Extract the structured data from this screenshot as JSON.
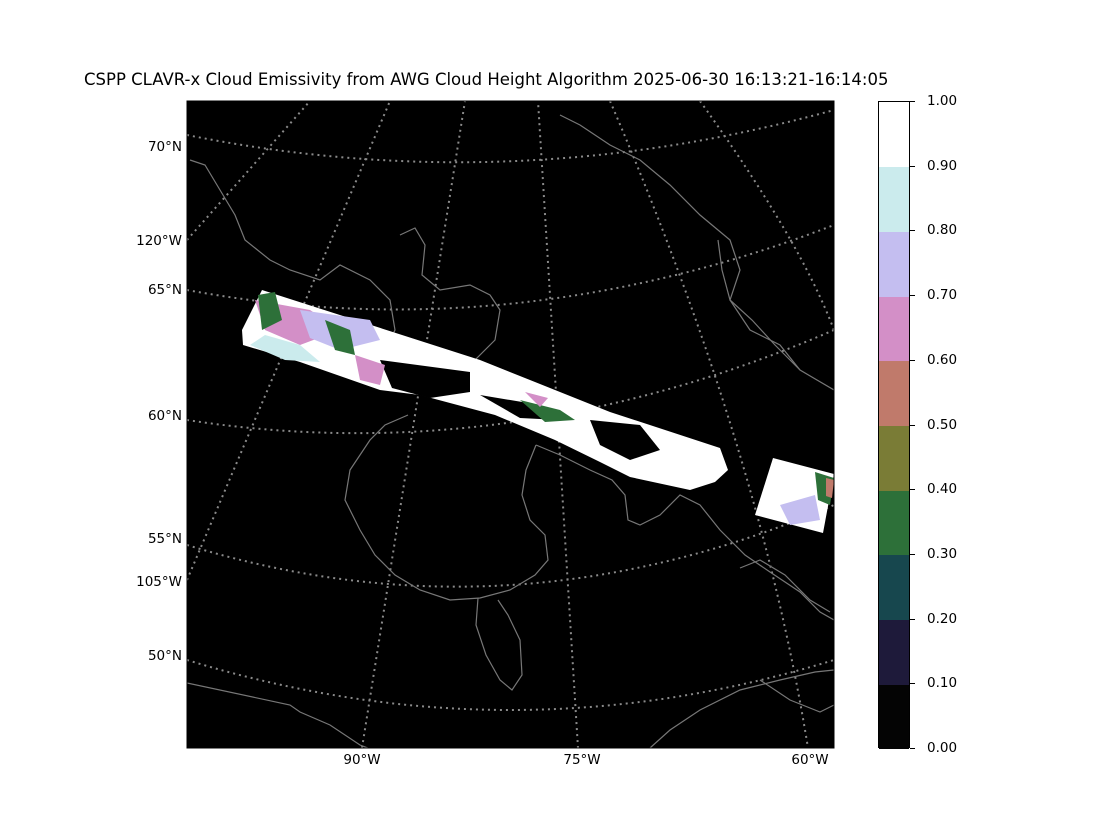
{
  "title": "CSPP CLAVR-x Cloud Emissivity from AWG Cloud Height Algorithm 2025-06-30 16:13:21-16:14:05",
  "lat_labels": [
    "70°N",
    "65°N",
    "60°N",
    "55°N",
    "50°N"
  ],
  "lon_left_labels": [
    "120°W",
    "105°W"
  ],
  "lon_bottom_labels": [
    "90°W",
    "75°W",
    "60°W"
  ],
  "colorbar": {
    "ticks": [
      "0.00",
      "0.10",
      "0.20",
      "0.30",
      "0.40",
      "0.50",
      "0.60",
      "0.70",
      "0.80",
      "0.90",
      "1.00"
    ],
    "colors": [
      "#040404",
      "#1e1a3a",
      "#17474e",
      "#2d7039",
      "#7a7c36",
      "#c07a6b",
      "#d38fc7",
      "#c4bef0",
      "#cbebed",
      "#ffffff"
    ]
  },
  "colors": {
    "background": "#000000",
    "graticule": "#8a8a8a",
    "coastline": "#777777"
  }
}
